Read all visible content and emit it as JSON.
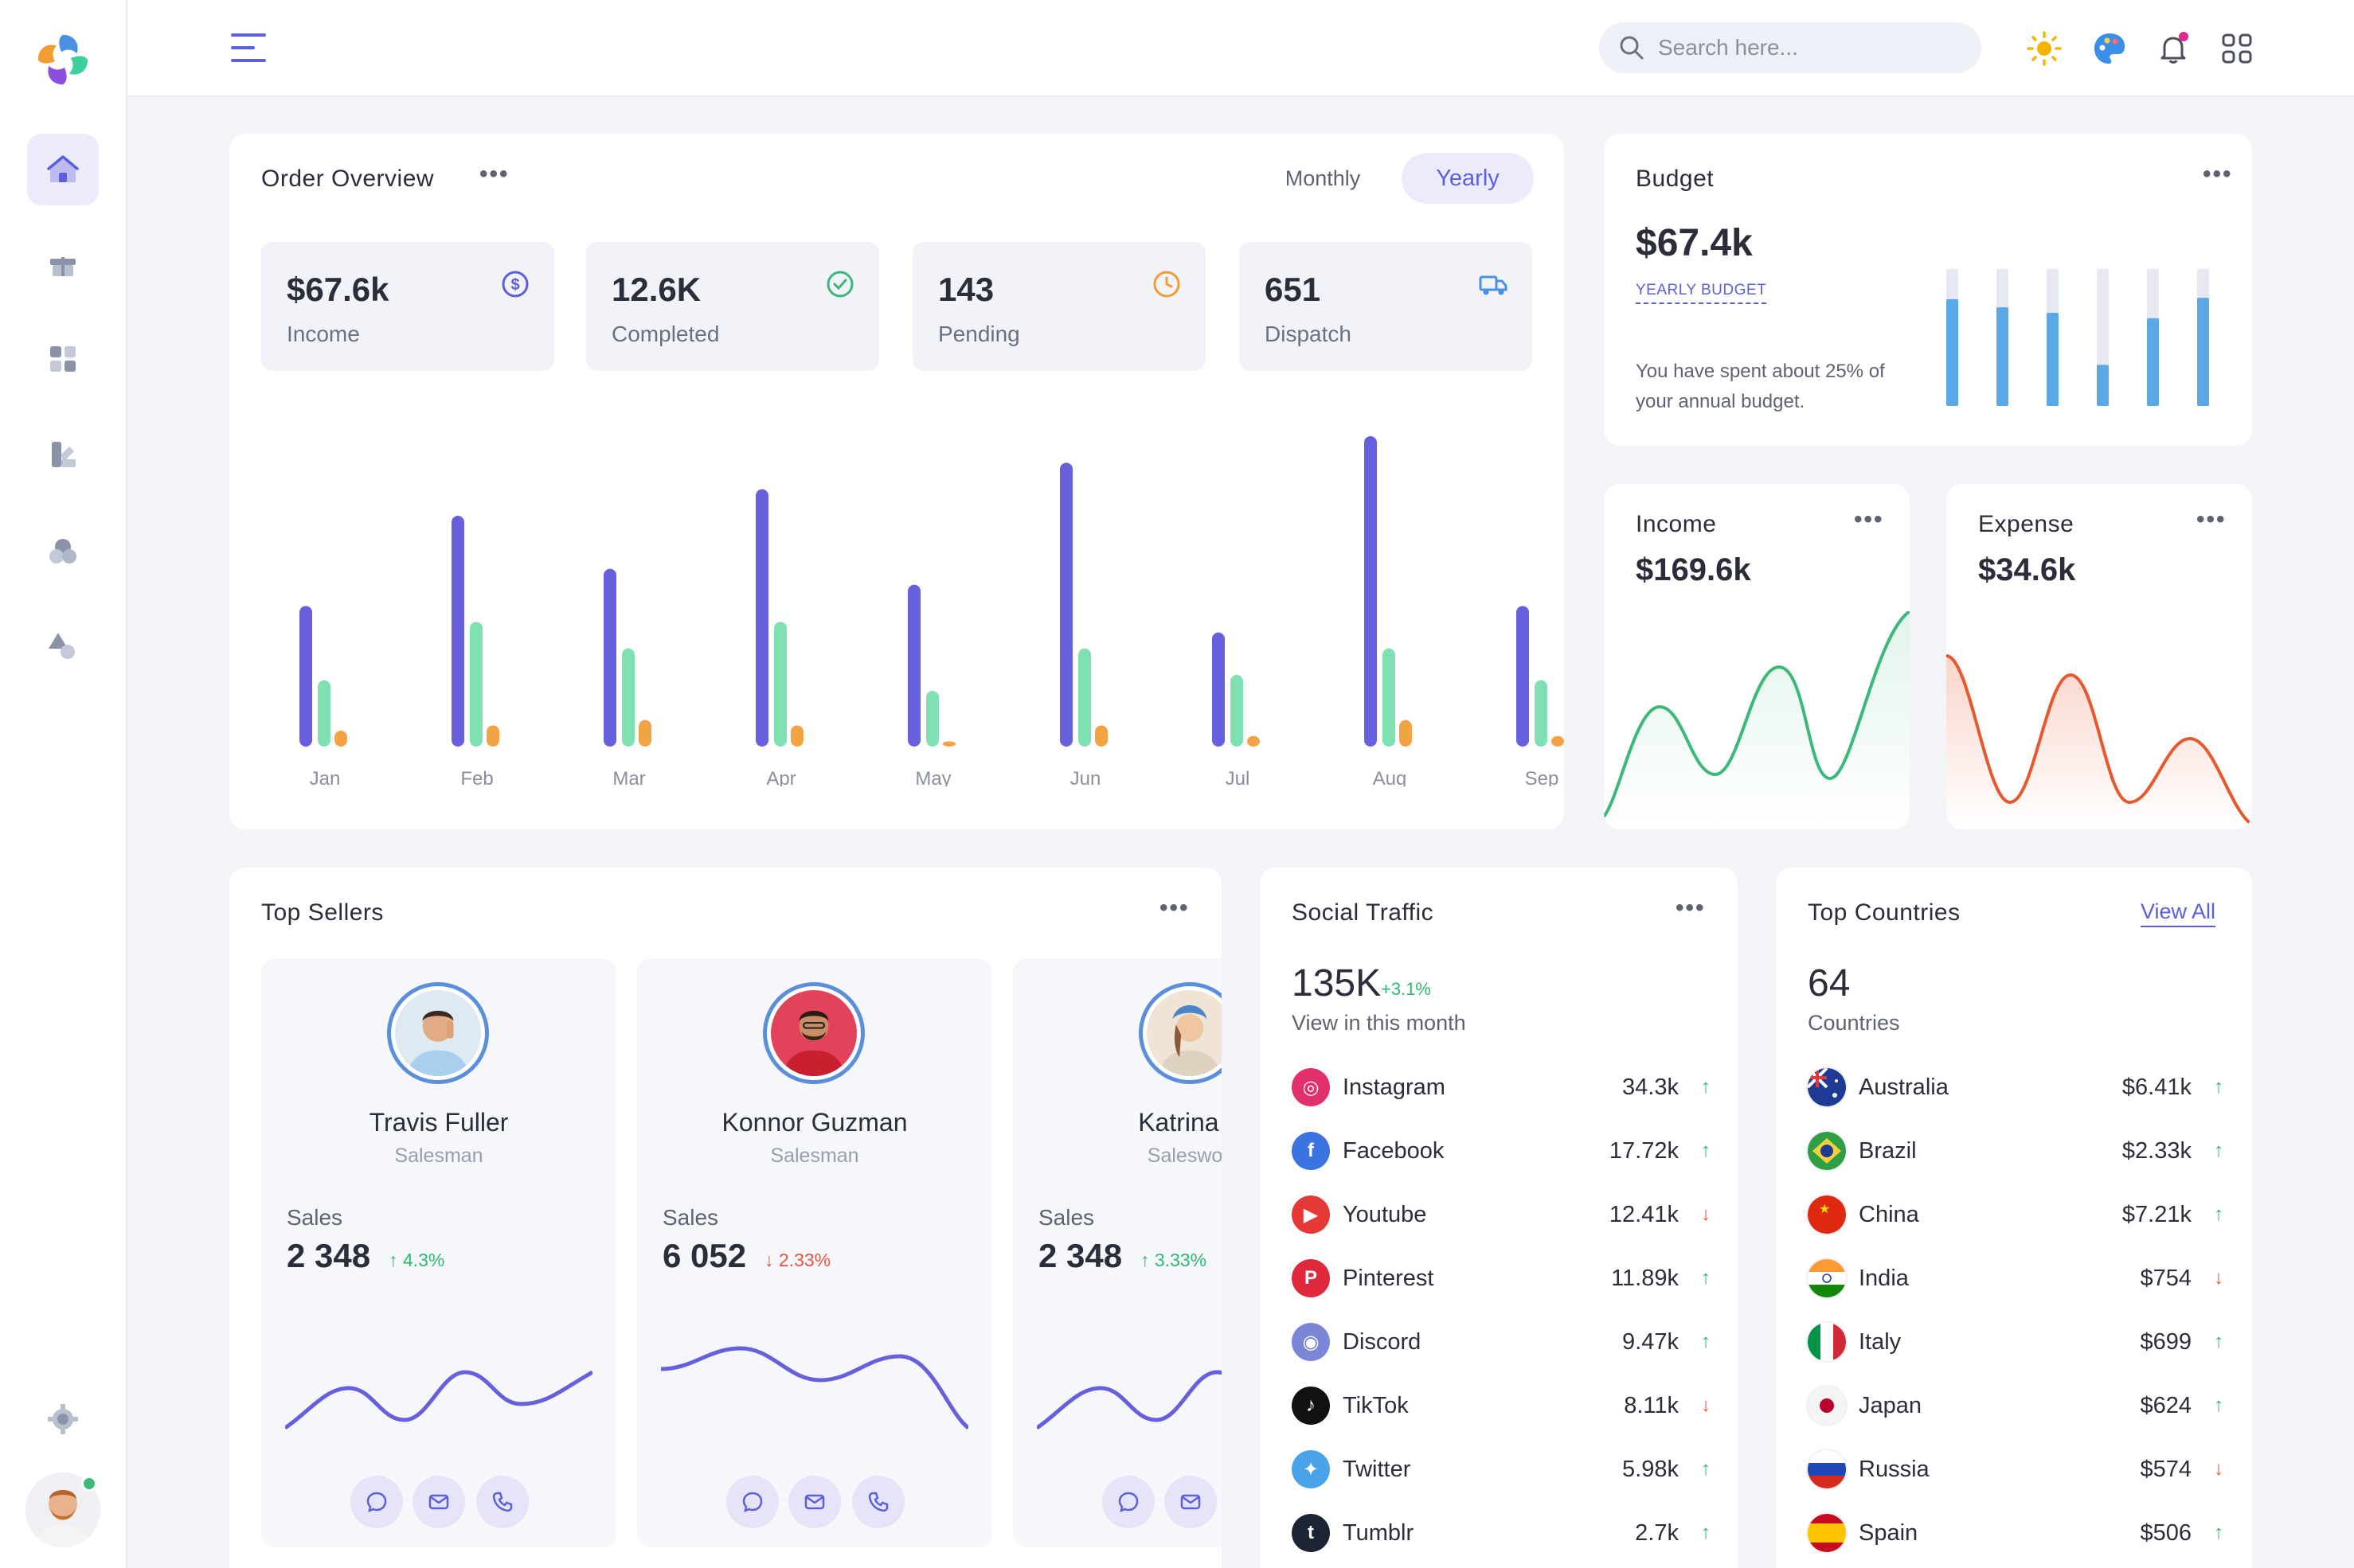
{
  "search": {
    "placeholder": "Search here..."
  },
  "order_overview": {
    "title": "Order Overview",
    "toggle": {
      "monthly": "Monthly",
      "yearly": "Yearly"
    },
    "stats": [
      {
        "value": "$67.6k",
        "label": "Income",
        "icon": "dollar-icon",
        "color": "#5b5fd9"
      },
      {
        "value": "12.6K",
        "label": "Completed",
        "icon": "check-circle-icon",
        "color": "#3cb878"
      },
      {
        "value": "143",
        "label": "Pending",
        "icon": "clock-icon",
        "color": "#f39c34"
      },
      {
        "value": "651",
        "label": "Dispatch",
        "icon": "truck-icon",
        "color": "#4a90e2"
      }
    ]
  },
  "chart_data": {
    "type": "bar",
    "categories": [
      "Jan",
      "Feb",
      "Mar",
      "Apr",
      "May",
      "Jun",
      "Jul",
      "Aug",
      "Sep"
    ],
    "series": [
      {
        "values": [
          53,
          87,
          67,
          97,
          61,
          107,
          43,
          117,
          53
        ],
        "color": "#6660dd"
      },
      {
        "values": [
          25,
          47,
          37,
          47,
          21,
          37,
          27,
          37,
          25
        ],
        "color": "#7fe0b2"
      },
      {
        "values": [
          6,
          8,
          10,
          8,
          2,
          8,
          4,
          10,
          4
        ],
        "color": "#f2a444"
      }
    ],
    "ylim": [
      0,
      120
    ],
    "grid": false,
    "legend": "none"
  },
  "budget": {
    "title": "Budget",
    "value": "$67.4k",
    "sublabel": "YEARLY BUDGET",
    "description": "You have spent about 25% of your annual budget.",
    "bars": [
      0.78,
      0.72,
      0.68,
      0.3,
      0.64,
      0.79
    ],
    "color": "#5aa9e6"
  },
  "income": {
    "title": "Income",
    "value": "$169.6k",
    "color": "#3cb878"
  },
  "expense": {
    "title": "Expense",
    "value": "$34.6k",
    "color": "#e8582e"
  },
  "top_sellers": {
    "title": "Top Sellers",
    "sellers": [
      {
        "name": "Travis Fuller",
        "role": "Salesman",
        "sales_label": "Sales",
        "sales": "2 348",
        "change": "4.3%",
        "dir": "up"
      },
      {
        "name": "Konnor Guzman",
        "role": "Salesman",
        "sales_label": "Sales",
        "sales": "6 052",
        "change": "2.33%",
        "dir": "down"
      },
      {
        "name": "Katrina V",
        "role": "Saleswon",
        "sales_label": "Sales",
        "sales": "2 348",
        "change": "3.33%",
        "dir": "up"
      }
    ]
  },
  "social_traffic": {
    "title": "Social Traffic",
    "total": "135K",
    "change": "+3.1%",
    "caption": "View in this month",
    "rows": [
      {
        "name": "Instagram",
        "value": "34.3k",
        "dir": "up",
        "icon": "instagram-icon",
        "color": "#e1306c"
      },
      {
        "name": "Facebook",
        "value": "17.72k",
        "dir": "up",
        "icon": "facebook-icon",
        "color": "#3b73e0"
      },
      {
        "name": "Youtube",
        "value": "12.41k",
        "dir": "down",
        "icon": "youtube-icon",
        "color": "#e53935"
      },
      {
        "name": "Pinterest",
        "value": "11.89k",
        "dir": "up",
        "icon": "pinterest-icon",
        "color": "#e0283c"
      },
      {
        "name": "Discord",
        "value": "9.47k",
        "dir": "up",
        "icon": "discord-icon",
        "color": "#7c86d6"
      },
      {
        "name": "TikTok",
        "value": "8.11k",
        "dir": "down",
        "icon": "tiktok-icon",
        "color": "#111111"
      },
      {
        "name": "Twitter",
        "value": "5.98k",
        "dir": "up",
        "icon": "twitter-icon",
        "color": "#4aa3e8"
      },
      {
        "name": "Tumblr",
        "value": "2.7k",
        "dir": "up",
        "icon": "tumblr-icon",
        "color": "#1c2433"
      }
    ]
  },
  "top_countries": {
    "title": "Top Countries",
    "view_all": "View All",
    "total": "64",
    "caption": "Countries",
    "rows": [
      {
        "name": "Australia",
        "value": "$6.41k",
        "dir": "up",
        "icon": "australia-flag-icon"
      },
      {
        "name": "Brazil",
        "value": "$2.33k",
        "dir": "up",
        "icon": "brazil-flag-icon"
      },
      {
        "name": "China",
        "value": "$7.21k",
        "dir": "up",
        "icon": "china-flag-icon"
      },
      {
        "name": "India",
        "value": "$754",
        "dir": "down",
        "icon": "india-flag-icon"
      },
      {
        "name": "Italy",
        "value": "$699",
        "dir": "up",
        "icon": "italy-flag-icon"
      },
      {
        "name": "Japan",
        "value": "$624",
        "dir": "up",
        "icon": "japan-flag-icon"
      },
      {
        "name": "Russia",
        "value": "$574",
        "dir": "down",
        "icon": "russia-flag-icon"
      },
      {
        "name": "Spain",
        "value": "$506",
        "dir": "up",
        "icon": "spain-flag-icon"
      }
    ]
  }
}
